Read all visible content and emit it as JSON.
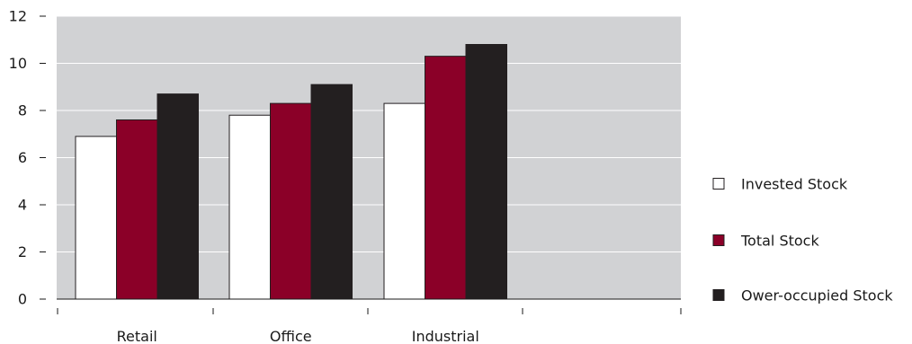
{
  "chart_data": {
    "type": "bar",
    "categories": [
      "Retail",
      "Office",
      "Industrial"
    ],
    "series": [
      {
        "name": "Invested Stock",
        "values": [
          6.9,
          7.8,
          8.3
        ],
        "color": "#ffffff"
      },
      {
        "name": "Total Stock",
        "values": [
          7.6,
          8.3,
          10.3
        ],
        "color": "#8b0028"
      },
      {
        "name": "Ower-occupied Stock",
        "values": [
          8.7,
          9.1,
          10.8
        ],
        "color": "#231f20"
      }
    ],
    "yticks": [
      "0",
      "2",
      "4",
      "6",
      "8",
      "10",
      "12"
    ],
    "ylim": [
      0,
      12
    ],
    "grid": true,
    "plot_background": "#d1d2d4",
    "legend_position": "right",
    "title": "",
    "xlabel": "",
    "ylabel": ""
  }
}
